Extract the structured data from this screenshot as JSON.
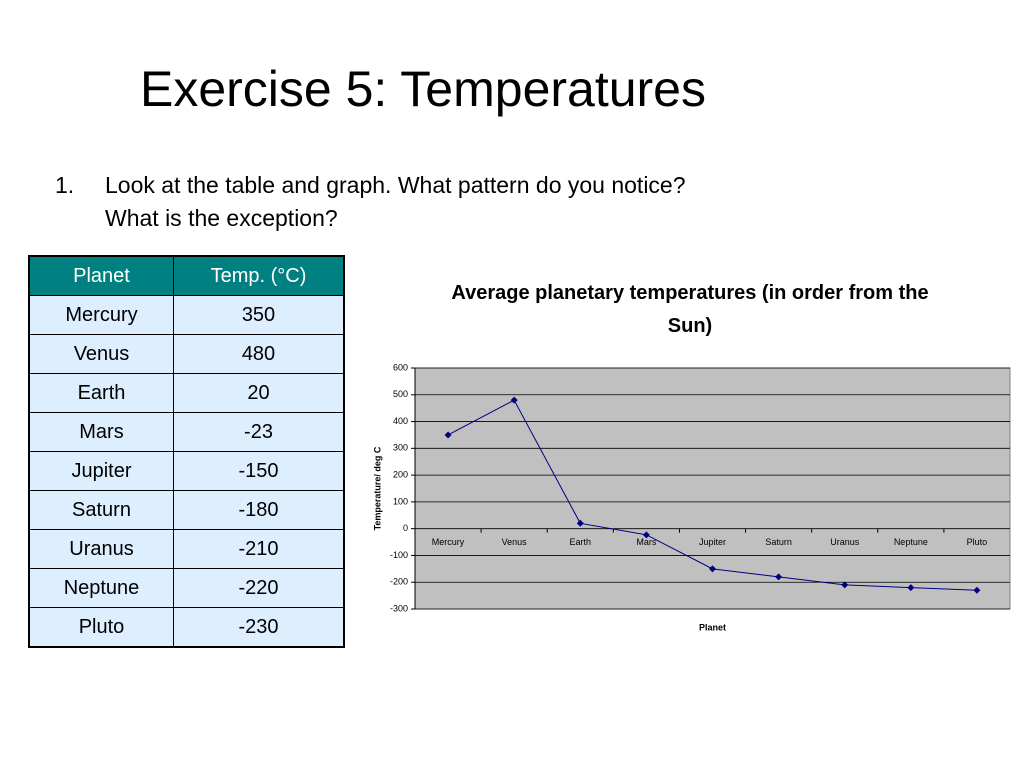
{
  "header": {
    "title": "Exercise 5: Temperatures"
  },
  "question": {
    "number": "1.",
    "lines": [
      "Look at the table and graph. What pattern do you notice?",
      "What is the exception?"
    ]
  },
  "table": {
    "columns": [
      "Planet",
      "Temp. (°C)"
    ],
    "rows": [
      [
        "Mercury",
        350
      ],
      [
        "Venus",
        480
      ],
      [
        "Earth",
        20
      ],
      [
        "Mars",
        -23
      ],
      [
        "Jupiter",
        -150
      ],
      [
        "Saturn",
        -180
      ],
      [
        "Uranus",
        -210
      ],
      [
        "Neptune",
        -220
      ],
      [
        "Pluto",
        -230
      ]
    ]
  },
  "chart_data": {
    "type": "line",
    "title": "Average planetary temperatures (in order from the Sun)",
    "x_label": "Planet",
    "y_label": "Temperature/ deg C",
    "categories": [
      "Mercury",
      "Venus",
      "Earth",
      "Mars",
      "Jupiter",
      "Saturn",
      "Uranus",
      "Neptune",
      "Pluto"
    ],
    "values": [
      350,
      480,
      20,
      -23,
      -150,
      -180,
      -210,
      -220,
      -230
    ],
    "color": "#000080",
    "background": "#c0c0c0",
    "ylim": [
      -300,
      600
    ],
    "yticks": [
      -300,
      -200,
      -100,
      0,
      100,
      200,
      300,
      400,
      500,
      600
    ],
    "grid": true
  }
}
